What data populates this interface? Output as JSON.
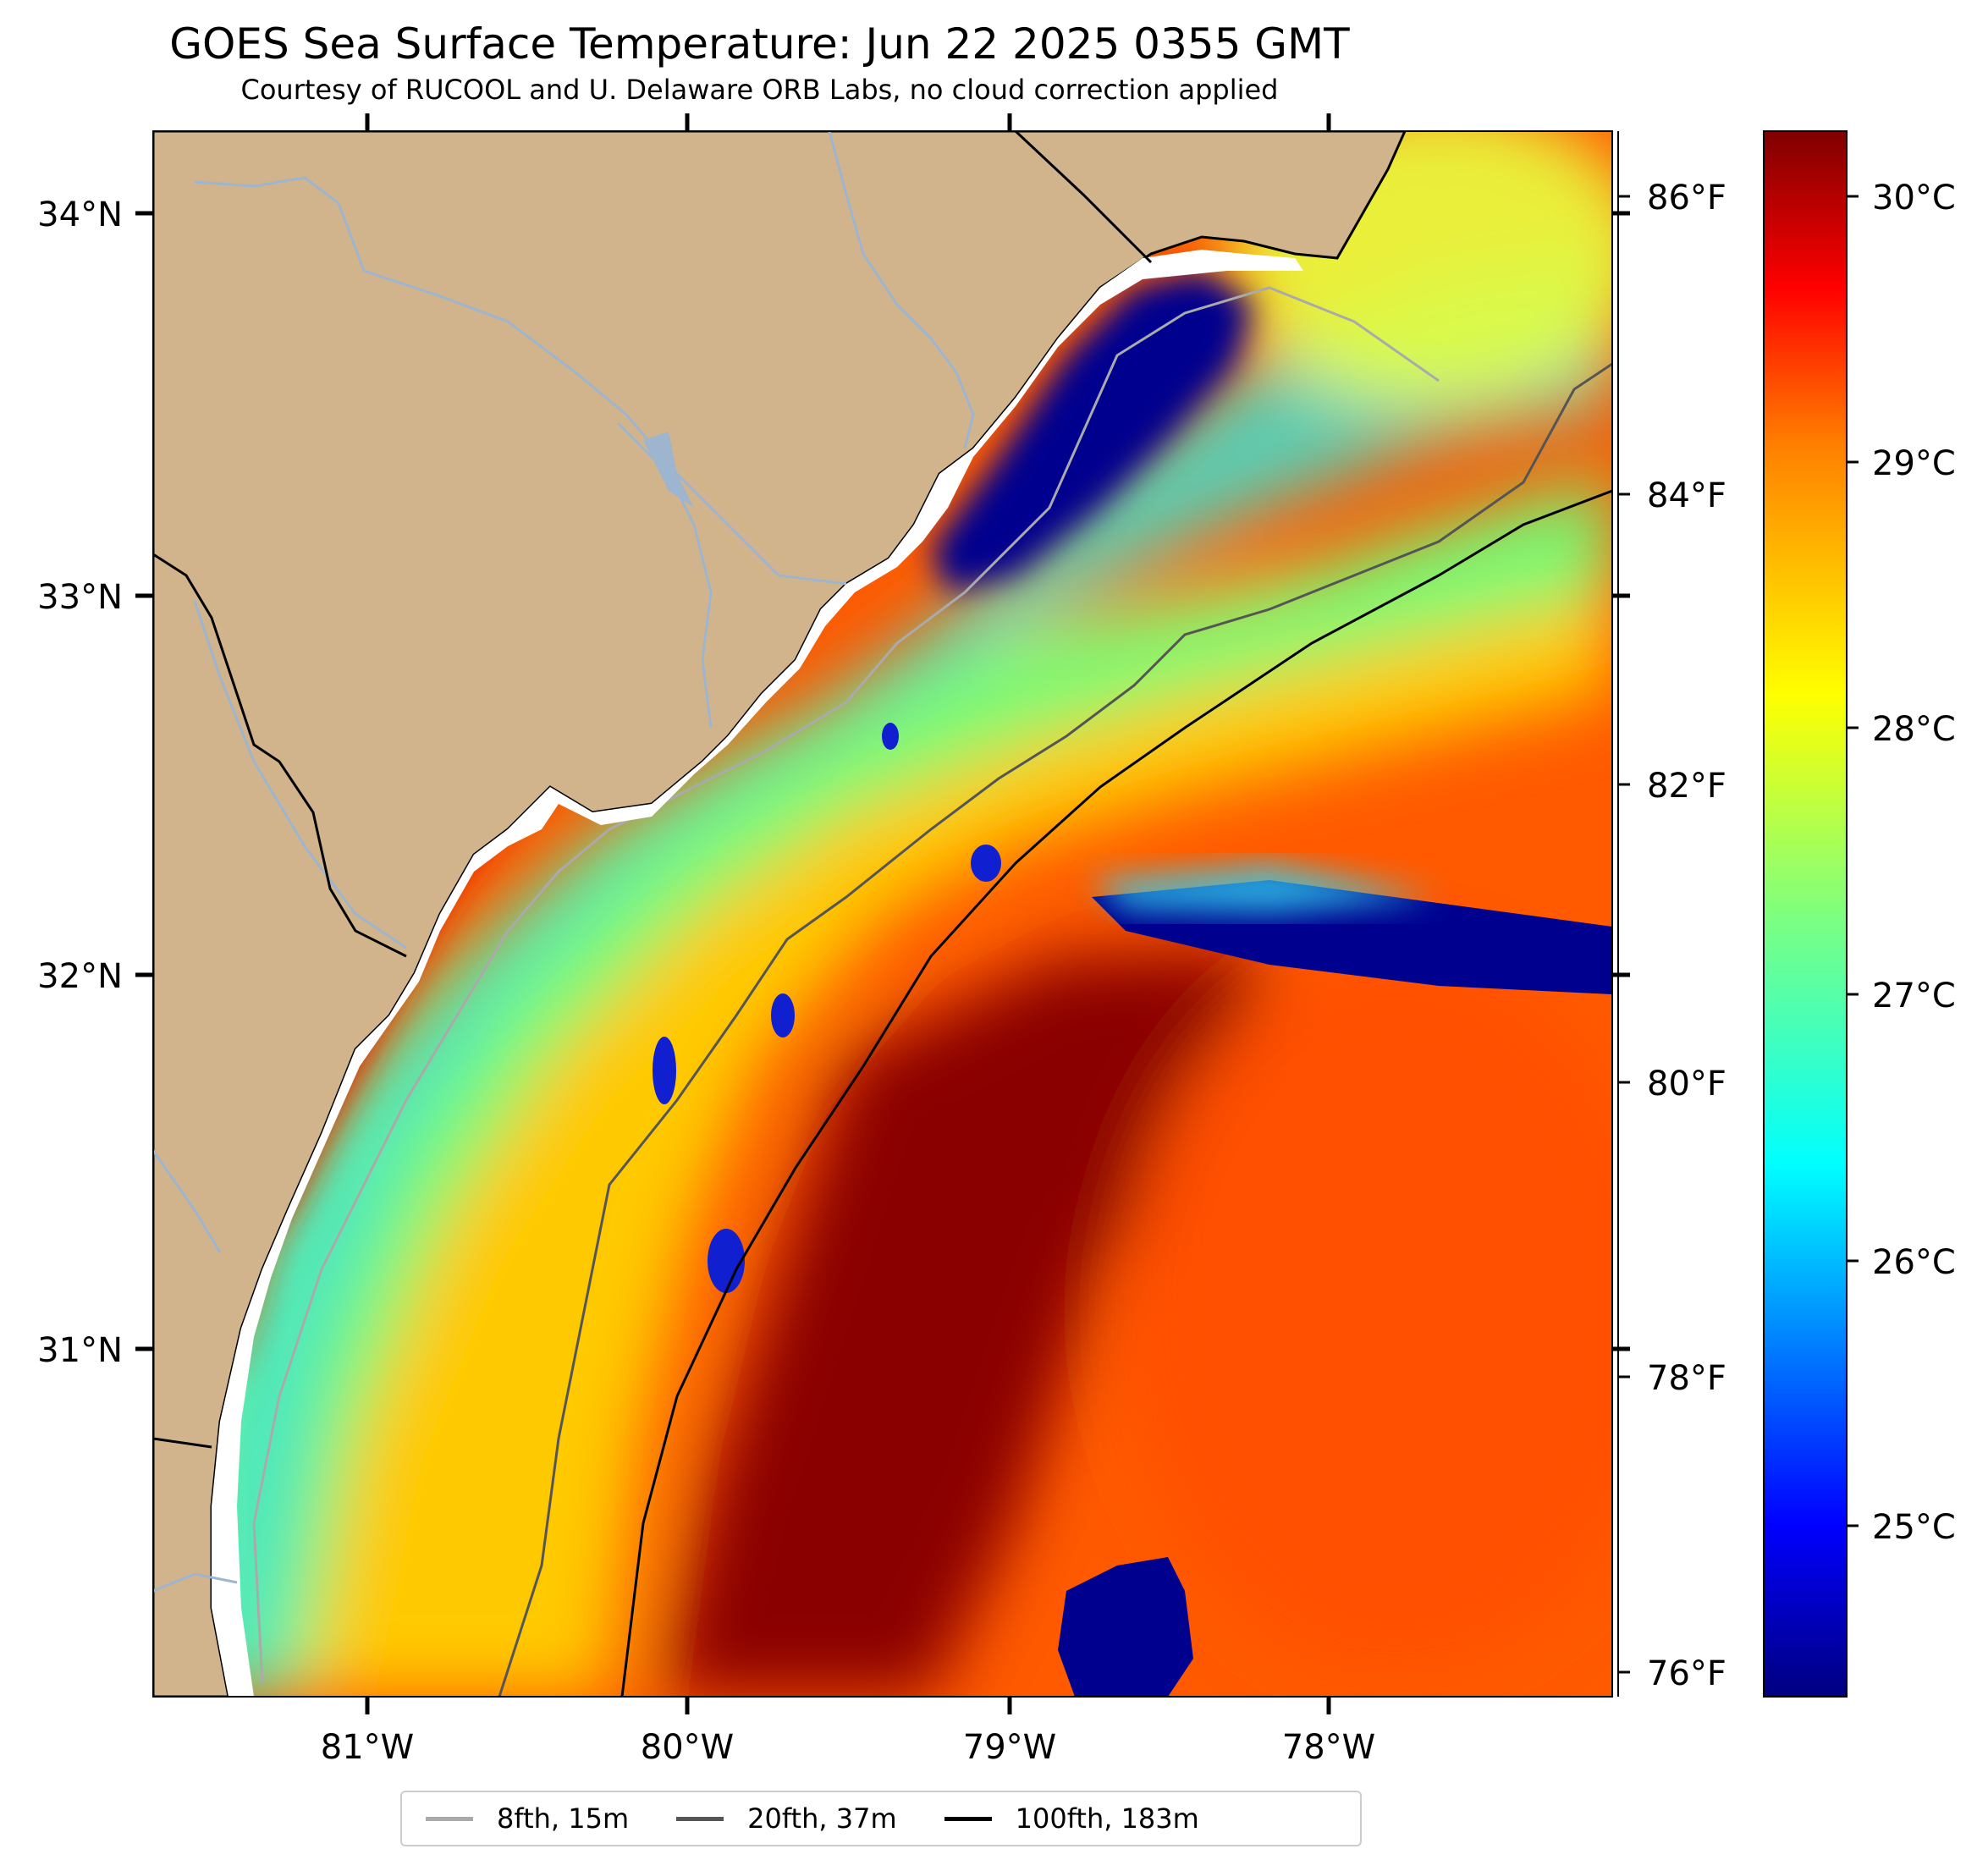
{
  "title": "GOES Sea Surface Temperature: Jun 22 2025 0355 GMT",
  "subtitle": "Courtesy of RUCOOL and U. Delaware ORB Labs, no cloud correction applied",
  "lat_labels": [
    "34°N",
    "33°N",
    "32°N",
    "31°N"
  ],
  "lon_labels": [
    "81°W",
    "80°W",
    "79°W",
    "78°W"
  ],
  "fahrenheit_labels": [
    "86°F",
    "84°F",
    "82°F",
    "80°F",
    "78°F",
    "76°F"
  ],
  "celsius_labels": [
    "30°C",
    "29°C",
    "28°C",
    "27°C",
    "26°C",
    "25°C"
  ],
  "legend": [
    {
      "label": "8fth, 15m",
      "color": "#aaaaaa"
    },
    {
      "label": "20fth, 37m",
      "color": "#555555"
    },
    {
      "label": "100fth, 183m",
      "color": "#000000"
    }
  ],
  "colors": {
    "land": "#d2b48c",
    "river": "#9db5cf",
    "coast": "#000000"
  },
  "colorbar": {
    "min_c": 24.6,
    "max_c": 30.4,
    "stops": [
      "#00007f",
      "#0000ff",
      "#007fff",
      "#00ffff",
      "#7fff7f",
      "#ffff00",
      "#ff7f00",
      "#ff0000",
      "#7f0000"
    ]
  }
}
